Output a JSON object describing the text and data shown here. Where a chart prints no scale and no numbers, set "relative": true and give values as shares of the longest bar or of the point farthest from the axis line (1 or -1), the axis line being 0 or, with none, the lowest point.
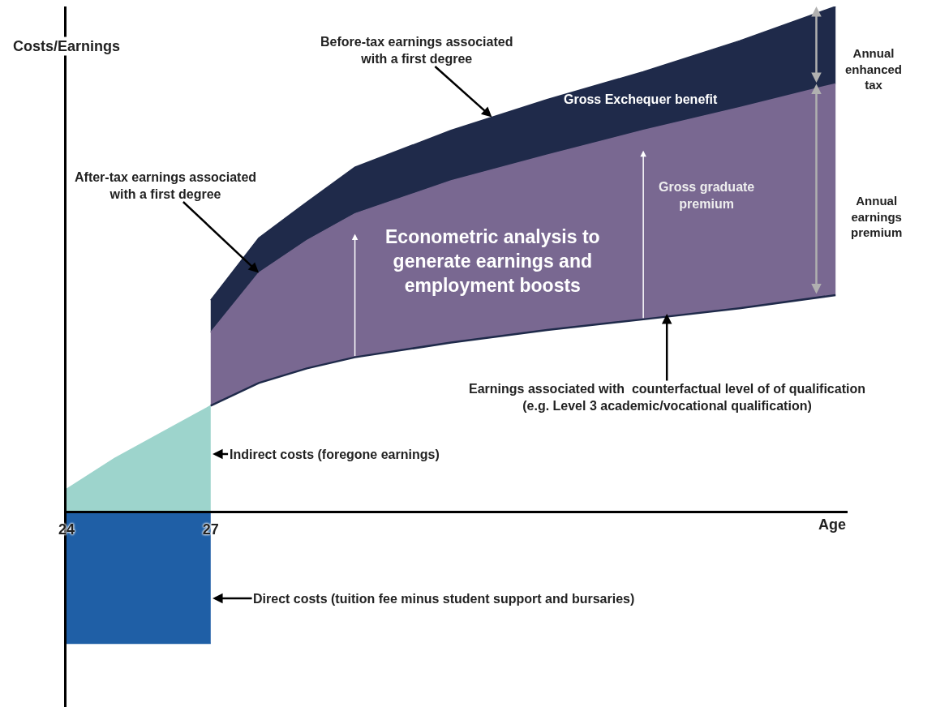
{
  "chart_data": {
    "type": "area",
    "relative": true,
    "xlabel": "Age",
    "ylabel": "Costs/Earnings",
    "xlim": [
      24,
      40.25
    ],
    "xticks": [
      24,
      27
    ],
    "series": [
      {
        "color": "#9dd4cc",
        "x": [
          24,
          25,
          26,
          27
        ],
        "values": [
          0.045,
          0.106,
          0.158,
          0.21
        ]
      },
      {
        "color": "#1f5fa6",
        "x": [
          24,
          27
        ],
        "values": [
          -0.26,
          -0.26
        ]
      },
      {
        "type": "line",
        "color": "#1f2a4a",
        "x": [
          27,
          28,
          29,
          30,
          32,
          34,
          36,
          38,
          40
        ],
        "values": [
          0.21,
          0.255,
          0.284,
          0.306,
          0.335,
          0.36,
          0.381,
          0.403,
          0.429
        ]
      },
      {
        "color": "#796891",
        "x": [
          27,
          28,
          29,
          30,
          32,
          34,
          36,
          38,
          40
        ],
        "values": [
          0.355,
          0.473,
          0.537,
          0.59,
          0.655,
          0.706,
          0.755,
          0.8,
          0.847
        ]
      },
      {
        "color": "#1f2a4a",
        "x": [
          27,
          28,
          29,
          30,
          32,
          34,
          36,
          38,
          40
        ],
        "values": [
          0.419,
          0.542,
          0.613,
          0.682,
          0.755,
          0.816,
          0.871,
          0.932,
          1.0
        ]
      }
    ],
    "annotations": [
      {
        "text": "Before-tax earnings associated with a first degree",
        "x": 32.85,
        "y": 0.781
      },
      {
        "text": "After-tax earnings associated with a first degree",
        "x": 28,
        "y": 0.473
      },
      {
        "text": "Earnings associated with  counterfactual level of of qualification (e.g. Level 3 academic/vocational qualification)",
        "x": 36.49,
        "y": 0.392
      },
      "Indirect costs (foregone earnings)",
      "Direct costs (tuition fee minus student support and bursaries)",
      "Gross Exchequer benefit",
      "Gross graduate premium",
      "Econometric analysis to generate earnings and employment boosts",
      "Annual enhanced tax",
      "Annual earnings premium"
    ]
  }
}
